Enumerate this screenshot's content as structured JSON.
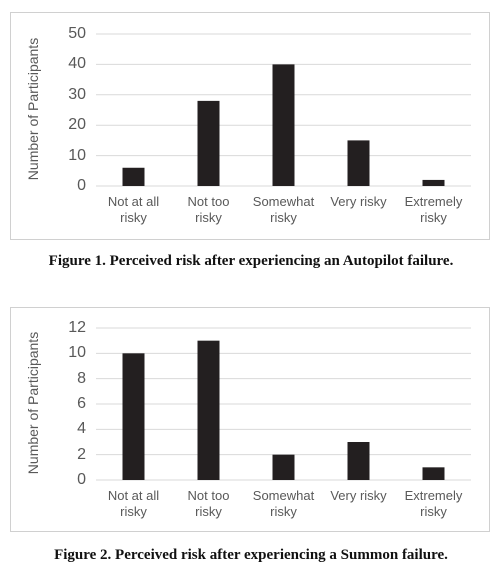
{
  "chart_data": [
    {
      "type": "bar",
      "y_label": "Number of Participants",
      "categories": [
        "Not at all risky",
        "Not too risky",
        "Somewhat risky",
        "Very risky",
        "Extremely risky"
      ],
      "values": [
        6,
        28,
        40,
        15,
        2
      ],
      "color": "#231f20",
      "ylim": [
        0,
        50
      ],
      "yticks": [
        0,
        10,
        20,
        30,
        40,
        50
      ],
      "grid": true,
      "caption": "Figure 1. Perceived risk after experiencing an Autopilot failure."
    },
    {
      "type": "bar",
      "y_label": "Number of Participants",
      "categories": [
        "Not at all risky",
        "Not too risky",
        "Somewhat risky",
        "Very risky",
        "Extremely risky"
      ],
      "values": [
        10,
        11,
        2,
        3,
        1
      ],
      "color": "#231f20",
      "ylim": [
        0,
        12
      ],
      "yticks": [
        0,
        2,
        4,
        6,
        8,
        10,
        12
      ],
      "grid": true,
      "caption": "Figure 2. Perceived risk after experiencing a Summon failure."
    }
  ]
}
